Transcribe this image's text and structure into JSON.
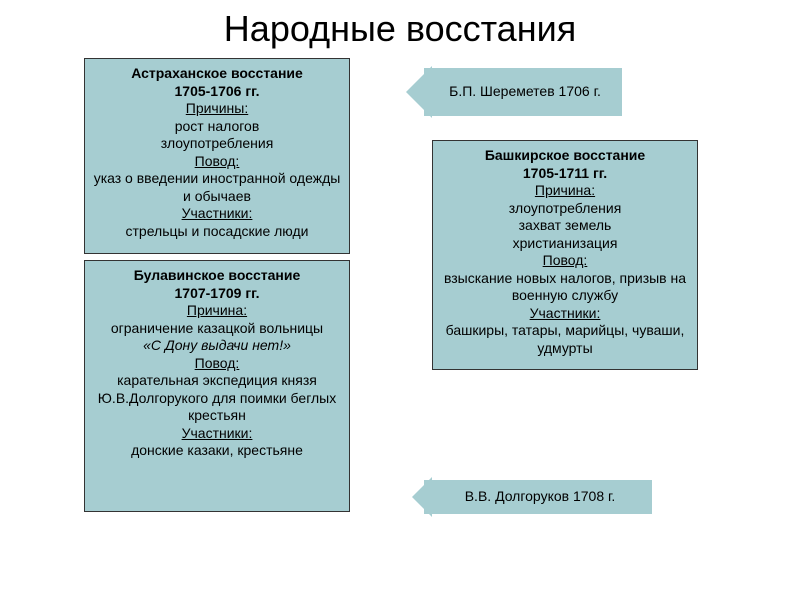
{
  "title": "Народные восстания",
  "boxes": {
    "astrakhan": {
      "heading": "Астраханское восстание",
      "years": "1705-1706 гг.",
      "label_reasons": "Причины:",
      "reasons_line1": "рост налогов",
      "reasons_line2": "злоупотребления",
      "label_pretext": "Повод:",
      "pretext": "указ о введении иностранной одежды и обычаев",
      "label_participants": "Участники:",
      "participants": "стрельцы и посадские люди"
    },
    "bulavin": {
      "heading": "Булавинское восстание",
      "years": "1707-1709 гг.",
      "label_reason": "Причина:",
      "reason_line1": "ограничение казацкой вольницы",
      "reason_quote": "«С Дону выдачи нет!»",
      "label_pretext": "Повод:",
      "pretext": "карательная экспедиция князя Ю.В.Долгорукого для поимки беглых крестьян",
      "label_participants": "Участники:",
      "participants": "донские казаки, крестьяне"
    },
    "bashkir": {
      "heading": "Башкирское восстание",
      "years": "1705-1711 гг.",
      "label_reason": "Причина:",
      "reason_line1": "злоупотребления",
      "reason_line2": "захват земель",
      "reason_line3": "христианизация",
      "label_pretext": "Повод:",
      "pretext": "взыскание новых налогов, призыв на военную службу",
      "label_participants": "Участники:",
      "participants": "башкиры, татары, марийцы, чуваши, удмурты"
    }
  },
  "arrows": {
    "sheremetev": "Б.П. Шереметев 1706 г.",
    "dolgorukov": "В.В. Долгоруков 1708 г."
  },
  "colors": {
    "box_bg": "#a6cdd1",
    "page_bg": "#ffffff",
    "text": "#000000"
  }
}
